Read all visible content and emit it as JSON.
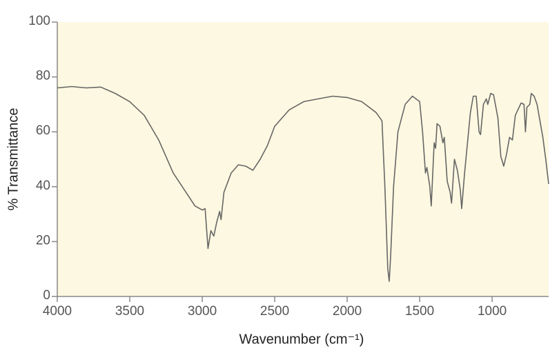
{
  "chart_data": {
    "type": "line",
    "x_label": "Wavenumber (cm⁻¹)",
    "y_label": "% Transmittance",
    "xlim": [
      4000,
      610
    ],
    "ylim": [
      0,
      100
    ],
    "xticks": [
      4000,
      3500,
      3000,
      2500,
      2000,
      1500,
      1000
    ],
    "yticks": [
      0,
      20,
      40,
      60,
      80,
      100
    ],
    "color": "#666666",
    "background": "#fdf8e1",
    "x": [
      4000,
      3900,
      3800,
      3700,
      3600,
      3500,
      3400,
      3300,
      3200,
      3100,
      3050,
      3000,
      2980,
      2960,
      2940,
      2920,
      2900,
      2880,
      2870,
      2850,
      2800,
      2750,
      2700,
      2650,
      2600,
      2550,
      2500,
      2400,
      2300,
      2200,
      2100,
      2000,
      1900,
      1800,
      1760,
      1740,
      1720,
      1710,
      1700,
      1680,
      1650,
      1600,
      1550,
      1500,
      1480,
      1460,
      1450,
      1430,
      1420,
      1400,
      1390,
      1380,
      1360,
      1340,
      1330,
      1310,
      1290,
      1280,
      1260,
      1240,
      1220,
      1210,
      1190,
      1150,
      1130,
      1110,
      1090,
      1080,
      1060,
      1040,
      1030,
      1010,
      990,
      960,
      940,
      920,
      900,
      880,
      860,
      840,
      800,
      780,
      770,
      760,
      740,
      730,
      710,
      690,
      670,
      650,
      630,
      610
    ],
    "values": [
      76,
      76.5,
      76,
      76.3,
      74,
      71,
      66,
      57,
      45,
      37,
      33,
      31.5,
      32,
      17.5,
      24,
      22,
      27,
      31,
      28,
      38,
      45,
      48,
      47.5,
      46,
      50,
      55,
      62,
      68,
      71,
      72,
      73,
      72.5,
      71,
      67,
      64,
      40,
      10,
      5.5,
      15,
      40,
      60,
      70,
      73,
      71,
      60,
      45,
      47,
      40,
      33,
      56,
      54,
      63,
      62,
      56,
      58,
      42,
      38,
      34,
      50,
      46,
      39,
      32,
      45,
      67,
      73,
      73,
      60,
      59,
      70,
      72,
      70,
      74,
      73.5,
      65,
      51,
      47.5,
      52,
      58,
      57,
      66,
      70.5,
      70,
      60,
      69,
      70,
      74,
      73,
      70,
      64,
      58,
      50,
      41
    ]
  }
}
